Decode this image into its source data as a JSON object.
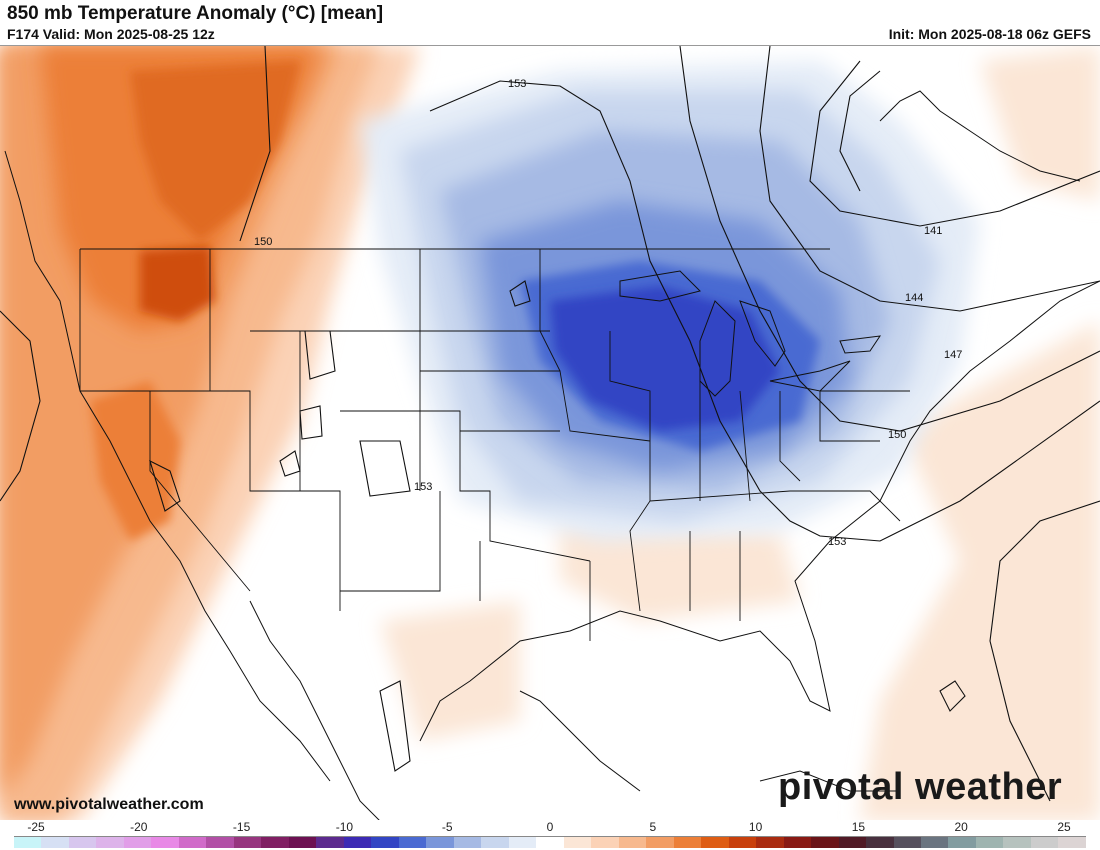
{
  "header": {
    "title": "850 mb Temperature Anomaly (°C) [mean]",
    "valid": "F174 Valid: Mon 2025-08-25 12z",
    "init": "Init: Mon 2025-08-18 06z GEFS"
  },
  "contour_labels": [
    "153",
    "150",
    "141",
    "144",
    "147",
    "150",
    "153",
    "153"
  ],
  "footer": {
    "url": "www.pivotalweather.com",
    "brand": "pivotal weather"
  },
  "colorbar": {
    "ticks": [
      "-25",
      "-20",
      "-15",
      "-10",
      "-5",
      "0",
      "5",
      "10",
      "15",
      "20",
      "25"
    ],
    "colors": [
      "#c8f4f8",
      "#d6e0f4",
      "#d7c6ee",
      "#ddb3ea",
      "#e19ee8",
      "#e889e6",
      "#d06bc9",
      "#b24fa6",
      "#97357f",
      "#801f63",
      "#6c1152",
      "#5c2a8e",
      "#3c2ab4",
      "#3245c4",
      "#4a6ad2",
      "#7a96da",
      "#a6bae4",
      "#c8d6ee",
      "#e4ecf7",
      "#ffffff",
      "#fbe6d6",
      "#fbd2b6",
      "#f7b98e",
      "#f29d64",
      "#ec7f38",
      "#de5d14",
      "#c8400c",
      "#a92b10",
      "#891a14",
      "#6a1418",
      "#501a26",
      "#48303e",
      "#56505e",
      "#6a7480",
      "#829ca0",
      "#9eb4b0",
      "#b6c2be",
      "#cccccc",
      "#dcd4d4"
    ]
  }
}
